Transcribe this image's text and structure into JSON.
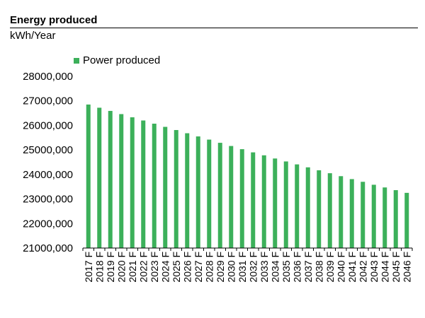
{
  "header": {
    "title": "Energy produced",
    "unit": "kWh/Year"
  },
  "legend": {
    "label": "Power produced"
  },
  "colors": {
    "bar": "#3cb05a",
    "axis": "#000000"
  },
  "chart_data": {
    "type": "bar",
    "title": "Energy produced",
    "subtitle": "kWh/Year",
    "xlabel": "",
    "ylabel": "",
    "ylim": [
      21000000,
      28000000
    ],
    "yticks": [
      21000000,
      22000000,
      23000000,
      24000000,
      25000000,
      26000000,
      27000000,
      28000000
    ],
    "ytick_labels": [
      "21000,000",
      "22000,000",
      "23000,000",
      "24000,000",
      "25000,000",
      "26000,000",
      "27000,000",
      "28000,000"
    ],
    "grid": false,
    "legend_position": "top-left",
    "categories": [
      "2017 F",
      "2018 F",
      "2019 F",
      "2020 F",
      "2021 F",
      "2022 F",
      "2023 F",
      "2024 F",
      "2025 F",
      "2026 F",
      "2027 F",
      "2028 F",
      "2029 F",
      "2030 F",
      "2031 F",
      "2032 F",
      "2033 F",
      "2034 F",
      "2035 F",
      "2036 F",
      "2037 F",
      "2038 F",
      "2039 F",
      "2040 F",
      "2041 F",
      "2042 F",
      "2043 F",
      "2044 F",
      "2045 F",
      "2046 F"
    ],
    "series": [
      {
        "name": "Power produced",
        "values": [
          26850000,
          26720000,
          26590000,
          26460000,
          26330000,
          26200000,
          26070000,
          25940000,
          25810000,
          25680000,
          25550000,
          25420000,
          25290000,
          25160000,
          25030000,
          24900000,
          24780000,
          24650000,
          24530000,
          24410000,
          24290000,
          24170000,
          24050000,
          23930000,
          23810000,
          23700000,
          23580000,
          23470000,
          23360000,
          23250000
        ]
      }
    ]
  }
}
